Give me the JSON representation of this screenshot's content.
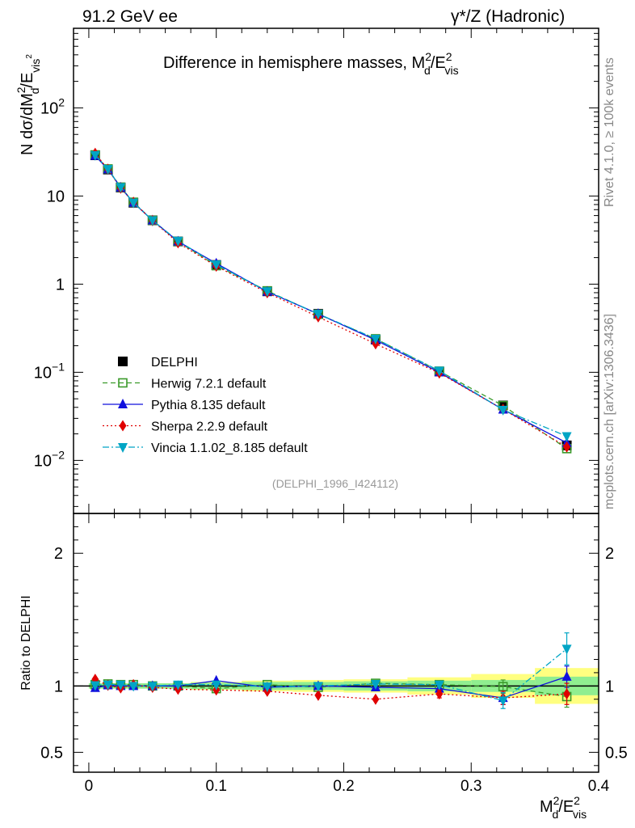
{
  "header": {
    "left": "91.2 GeV ee",
    "right": "γ*/Z (Hadronic)"
  },
  "side_labels": {
    "rivet": "Rivet 4.1.0, ≥ 100k events",
    "mcplots": "mcplots.cern.ch [arXiv:1306.3436]"
  },
  "chart_data": {
    "type": "line",
    "title": "Difference in hemisphere masses, M_d^2/E_vis^2",
    "title_parts": {
      "main": "Difference in hemisphere masses, M",
      "sup": "2",
      "sub": "d",
      "post": "/E",
      "sup2": "2",
      "sub2": "vis"
    },
    "xlabel": "M_d^2/E_vis^2",
    "ylabel": "N  dσ/dM_d^2/E_vis^2",
    "ratio_ylabel": "Ratio to DELPHI",
    "watermark": "(DELPHI_1996_I424112)",
    "xlim": [
      -0.012,
      0.4
    ],
    "ylim": [
      0.0025,
      800
    ],
    "yscale": "log",
    "ratio_ylim": [
      0.35,
      2.3
    ],
    "x_ticks": [
      0,
      0.1,
      0.2,
      0.3,
      0.4
    ],
    "x_tick_labels": [
      "0",
      "0.1",
      "0.2",
      "0.3",
      "0.4"
    ],
    "y_major_ticks": [
      0.01,
      0.1,
      1,
      10,
      100
    ],
    "y_tick_labels": [
      {
        "base": "10",
        "exp": "−2"
      },
      {
        "base": "10",
        "exp": "−1"
      },
      {
        "base": "1",
        "exp": ""
      },
      {
        "base": "10",
        "exp": ""
      },
      {
        "base": "10",
        "exp": "2"
      }
    ],
    "ratio_ticks": [
      0.5,
      1,
      2
    ],
    "ratio_tick_labels": [
      "0.5",
      "1",
      "2"
    ],
    "x": [
      0.005,
      0.015,
      0.025,
      0.035,
      0.05,
      0.07,
      0.1,
      0.14,
      0.18,
      0.225,
      0.275,
      0.325,
      0.375
    ],
    "bin_edges": [
      0,
      0.01,
      0.02,
      0.03,
      0.04,
      0.06,
      0.08,
      0.12,
      0.16,
      0.2,
      0.25,
      0.3,
      0.35,
      0.4
    ],
    "ratio_band_inner": [
      0.02,
      0.02,
      0.02,
      0.02,
      0.02,
      0.02,
      0.025,
      0.03,
      0.03,
      0.035,
      0.04,
      0.045,
      0.07
    ],
    "ratio_band_outer": [
      0.02,
      0.02,
      0.02,
      0.02,
      0.02,
      0.02,
      0.03,
      0.04,
      0.045,
      0.05,
      0.065,
      0.09,
      0.135
    ],
    "series": [
      {
        "name": "DELPHI",
        "color": "#000000",
        "marker": "square-filled",
        "dash": "none",
        "values": [
          29,
          20,
          12.5,
          8.4,
          5.3,
          3.05,
          1.65,
          0.83,
          0.46,
          0.235,
          0.102,
          0.042,
          0.0148
        ],
        "ratio": [
          1,
          1,
          1,
          1,
          1,
          1,
          1,
          1,
          1,
          1,
          1,
          1,
          1
        ]
      },
      {
        "name": "Herwig 7.2.1 default",
        "color": "#3a9a2a",
        "marker": "square-open",
        "dash": "6,4",
        "values": [
          29.3,
          20.3,
          12.6,
          8.5,
          5.3,
          3.05,
          1.62,
          0.84,
          0.455,
          0.24,
          0.103,
          0.0418,
          0.0136
        ],
        "ratio": [
          1.01,
          1.015,
          1.01,
          1.01,
          1.0,
          1.0,
          0.98,
          1.01,
          0.99,
          1.02,
          1.01,
          0.995,
          0.92
        ],
        "ratio_err": [
          0,
          0,
          0,
          0,
          0,
          0,
          0,
          0,
          0,
          0,
          0,
          0.05,
          0.08
        ]
      },
      {
        "name": "Pythia 8.135 default",
        "color": "#1010dd",
        "marker": "triangle-up",
        "dash": "none",
        "values": [
          28.6,
          20.1,
          12.5,
          8.4,
          5.3,
          3.05,
          1.72,
          0.82,
          0.46,
          0.232,
          0.1,
          0.0378,
          0.0158
        ],
        "ratio": [
          0.985,
          1.005,
          1.0,
          1.0,
          1.0,
          1.0,
          1.04,
          0.99,
          1.0,
          0.99,
          0.98,
          0.91,
          1.07
        ],
        "ratio_err": [
          0,
          0,
          0,
          0,
          0,
          0,
          0,
          0,
          0,
          0,
          0,
          0.05,
          0.08
        ]
      },
      {
        "name": "Sherpa 2.2.9 default",
        "color": "#e00000",
        "marker": "diamond",
        "dash": "2,3",
        "values": [
          30.5,
          20.1,
          12.3,
          8.5,
          5.25,
          2.95,
          1.6,
          0.8,
          0.425,
          0.21,
          0.098,
          0.038,
          0.0142
        ],
        "ratio": [
          1.05,
          1.005,
          0.985,
          1.01,
          0.99,
          0.975,
          0.97,
          0.96,
          0.93,
          0.9,
          0.94,
          0.91,
          0.94
        ],
        "ratio_err": [
          0,
          0,
          0,
          0,
          0,
          0,
          0,
          0,
          0,
          0,
          0.03,
          0.05,
          0.08
        ]
      },
      {
        "name": "Vincia 1.1.02_8.185 default",
        "color": "#00a5c5",
        "marker": "triangle-down",
        "dash": "8,3,2,3",
        "values": [
          29.1,
          20.2,
          12.6,
          8.4,
          5.3,
          3.1,
          1.67,
          0.83,
          0.46,
          0.24,
          0.104,
          0.0375,
          0.0188
        ],
        "ratio": [
          1.005,
          1.01,
          1.01,
          1.0,
          1.0,
          1.01,
          1.01,
          0.995,
          1.0,
          1.015,
          1.01,
          0.89,
          1.28
        ],
        "ratio_err": [
          0,
          0,
          0,
          0,
          0,
          0,
          0,
          0,
          0,
          0,
          0,
          0.06,
          0.12
        ]
      }
    ]
  }
}
